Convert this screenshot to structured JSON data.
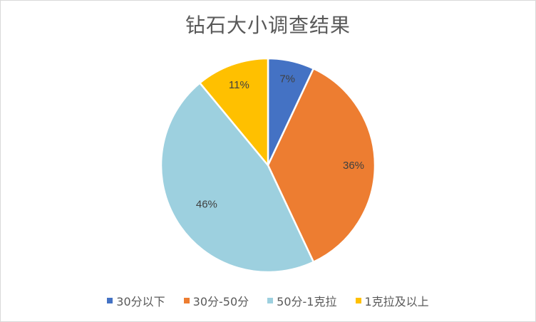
{
  "chart_data": {
    "type": "pie",
    "title": "钻石大小调查结果",
    "categories": [
      "30分以下",
      "30分-50分",
      "50分-1克拉",
      "1克拉及以上"
    ],
    "values": [
      7,
      36,
      46,
      11
    ],
    "labels": [
      "7%",
      "36%",
      "46%",
      "11%"
    ],
    "colors": [
      "#4472C4",
      "#ED7D31",
      "#9DD0DF",
      "#FFC000"
    ],
    "legend_position": "bottom",
    "start_angle": "12 o'clock",
    "direction": "clockwise"
  }
}
